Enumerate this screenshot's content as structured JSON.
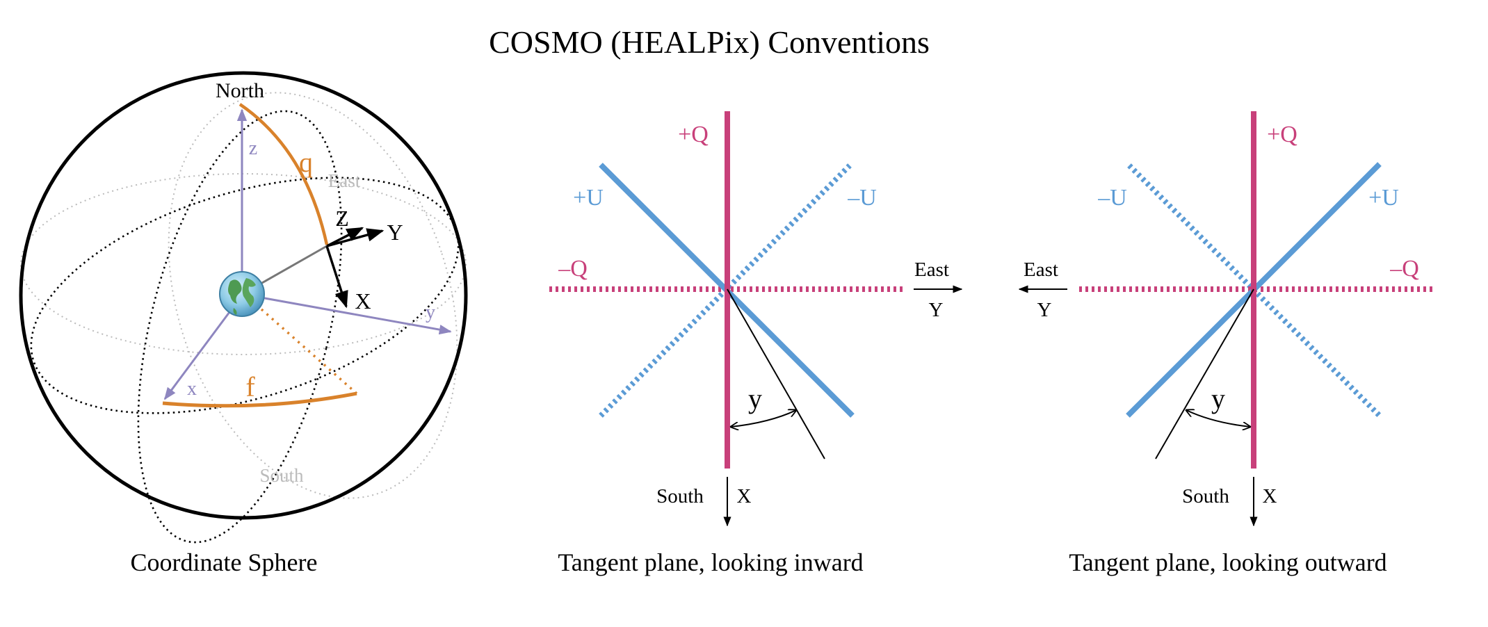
{
  "title": "COSMO (HEALPix) Conventions",
  "colors": {
    "q_pink": "#C8407A",
    "u_blue": "#5B9BD5",
    "theta_orange": "#D9822B",
    "axis_purple": "#8E86BF",
    "grid_gray": "#BBBBBB",
    "black": "#000000"
  },
  "sphere": {
    "caption": "Coordinate Sphere",
    "north": "North",
    "south": "South",
    "east": "East",
    "axis_z": "z",
    "axis_x": "x",
    "axis_y": "y",
    "theta": "q",
    "phi": "f",
    "basis_Z": "Z",
    "basis_Y": "Y",
    "basis_X": "X",
    "earth_icon": "earth-icon"
  },
  "inward": {
    "caption": "Tangent plane, looking inward",
    "plus_q": "+Q",
    "minus_q": "–Q",
    "plus_u": "+U",
    "minus_u": "–U",
    "east": "East",
    "y_axis": "Y",
    "south": "South",
    "x_axis": "X",
    "angle": "y"
  },
  "outward": {
    "caption": "Tangent plane, looking outward",
    "plus_q": "+Q",
    "minus_q": "–Q",
    "plus_u": "+U",
    "minus_u": "–U",
    "east": "East",
    "y_axis": "Y",
    "south": "South",
    "x_axis": "X",
    "angle": "y"
  }
}
